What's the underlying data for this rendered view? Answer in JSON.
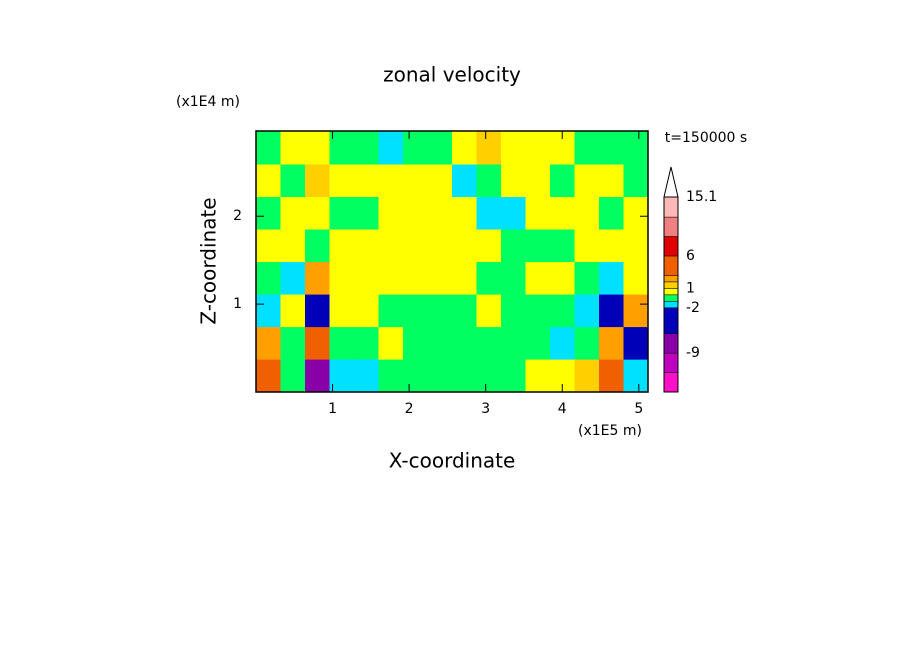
{
  "chart_data": {
    "type": "contourf",
    "title": "zonal velocity",
    "x_label": "X-coordinate",
    "y_label": "Z-coordinate",
    "x_scale_label": "(x1E5 m)",
    "y_scale_label": "(x1E4 m)",
    "time_label": "t=150000 s",
    "xlim": [
      0,
      5.12
    ],
    "ylim": [
      0,
      2.97
    ],
    "xticks": [
      1,
      2,
      3,
      4,
      5
    ],
    "yticks": [
      1,
      2
    ],
    "x": [
      0.16,
      0.48,
      0.8,
      1.12,
      1.44,
      1.76,
      2.08,
      2.4,
      2.72,
      3.04,
      3.36,
      3.68,
      4.0,
      4.32,
      4.64,
      4.96
    ],
    "y": [
      0.19,
      0.56,
      0.93,
      1.3,
      1.67,
      2.04,
      2.41,
      2.78
    ],
    "z": [
      [
        4,
        -0.5,
        -7,
        -1.5,
        -1.5,
        -0.5,
        -0.5,
        -0.5,
        -0.5,
        -0.5,
        -0.5,
        0.5,
        0.5,
        1.5,
        4,
        -1.5
      ],
      [
        2.5,
        -0.5,
        4,
        -0.5,
        -0.5,
        0.5,
        -0.5,
        -0.5,
        -0.5,
        -0.5,
        -0.5,
        -0.5,
        -1.5,
        -0.5,
        2.5,
        -4
      ],
      [
        -1.5,
        0.5,
        -4,
        0.5,
        0.5,
        -0.5,
        -0.5,
        -0.5,
        -0.5,
        0.5,
        -0.5,
        -0.5,
        -0.5,
        -1.5,
        -4,
        2.5
      ],
      [
        -0.5,
        -1.5,
        2.5,
        0.5,
        0.5,
        0.5,
        0.5,
        0.5,
        0.5,
        -0.5,
        -0.5,
        0.5,
        0.5,
        -0.5,
        -1.5,
        0.5
      ],
      [
        0.5,
        0.5,
        -0.5,
        0.5,
        0.5,
        0.5,
        0.5,
        0.5,
        0.5,
        0.5,
        -0.5,
        -0.5,
        -0.5,
        0.5,
        0.5,
        0.5
      ],
      [
        -0.5,
        0.5,
        0.5,
        -0.5,
        -0.5,
        0.5,
        0.5,
        0.5,
        0.5,
        -1.5,
        -1.5,
        0.5,
        0.5,
        0.5,
        -0.5,
        0.5
      ],
      [
        0.5,
        -0.5,
        1.5,
        0.5,
        0.5,
        0.5,
        0.5,
        0.5,
        -1.5,
        -0.5,
        0.5,
        0.5,
        -0.5,
        0.5,
        0.5,
        -0.5
      ],
      [
        -0.5,
        0.5,
        0.5,
        -0.5,
        -0.5,
        -1.5,
        -0.5,
        -0.5,
        0.5,
        1.5,
        0.5,
        0.5,
        0.5,
        -0.5,
        -0.5,
        -0.5
      ]
    ],
    "levels": [
      -15,
      -12,
      -9,
      -6,
      -2,
      -1,
      0,
      1,
      2,
      3,
      6,
      9,
      12,
      15.1
    ],
    "colors": [
      "#ff10c8",
      "#c000c0",
      "#8a00a8",
      "#0000b8",
      "#00e0ff",
      "#00ff60",
      "#ffff00",
      "#ffd000",
      "#ffa000",
      "#f06000",
      "#e00000",
      "#f08080",
      "#ffb8b8"
    ],
    "over_color": "#ffffff",
    "colorbar_ticks": [
      15.1,
      6,
      1,
      -2,
      -9
    ]
  }
}
